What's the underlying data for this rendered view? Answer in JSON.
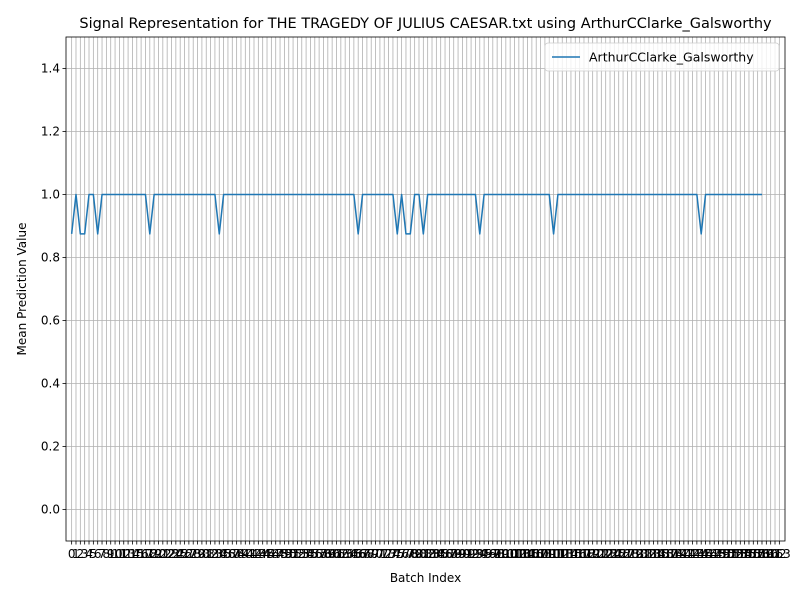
{
  "chart_data": {
    "type": "line",
    "title": "Signal Representation for THE TRAGEDY OF JULIUS CAESAR.txt using ArthurCClarke_Galsworthy",
    "xlabel": "Batch Index",
    "ylabel": "Mean Prediction Value",
    "xlim": [
      -1.3,
      164.3
    ],
    "ylim": [
      -0.1,
      1.5
    ],
    "yticks": [
      0.0,
      0.2,
      0.4,
      0.6,
      0.8,
      1.0,
      1.2,
      1.4
    ],
    "ytick_labels": [
      "0.0",
      "0.2",
      "0.4",
      "0.6",
      "0.8",
      "1.0",
      "1.2",
      "1.4"
    ],
    "x_tick_step": 1,
    "x_tick_label_range": [
      0,
      163
    ],
    "grid": true,
    "legend": {
      "placement": "upper-right",
      "entries": [
        "ArthurCClarke_Galsworthy"
      ]
    },
    "series": [
      {
        "name": "ArthurCClarke_Galsworthy",
        "color": "#1f77b4",
        "x_start": 0,
        "values": [
          0.875,
          1,
          0.875,
          0.875,
          1,
          1,
          0.875,
          1,
          1,
          1,
          1,
          1,
          1,
          1,
          1,
          1,
          1,
          1,
          0.875,
          1,
          1,
          1,
          1,
          1,
          1,
          1,
          1,
          1,
          1,
          1,
          1,
          1,
          1,
          1,
          0.875,
          1,
          1,
          1,
          1,
          1,
          1,
          1,
          1,
          1,
          1,
          1,
          1,
          1,
          1,
          1,
          1,
          1,
          1,
          1,
          1,
          1,
          1,
          1,
          1,
          1,
          1,
          1,
          1,
          1,
          1,
          1,
          0.875,
          1,
          1,
          1,
          1,
          1,
          1,
          1,
          1,
          0.875,
          1,
          0.875,
          0.875,
          1,
          1,
          0.875,
          1,
          1,
          1,
          1,
          1,
          1,
          1,
          1,
          1,
          1,
          1,
          1,
          0.875,
          1,
          1,
          1,
          1,
          1,
          1,
          1,
          1,
          1,
          1,
          1,
          1,
          1,
          1,
          1,
          1,
          0.875,
          1,
          1,
          1,
          1,
          1,
          1,
          1,
          1,
          1,
          1,
          1,
          1,
          1,
          1,
          1,
          1,
          1,
          1,
          1,
          1,
          1,
          1,
          1,
          1,
          1,
          1,
          1,
          1,
          1,
          1,
          1,
          1,
          1,
          0.875,
          1,
          1,
          1,
          1,
          1,
          1,
          1,
          1,
          1,
          1,
          1,
          1,
          1,
          1
        ]
      }
    ]
  }
}
